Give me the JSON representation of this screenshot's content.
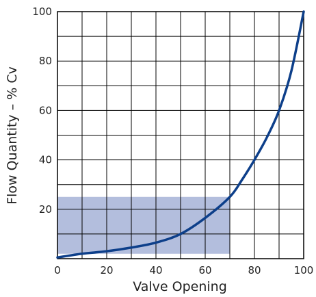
{
  "chart_data": {
    "type": "line",
    "title": "",
    "xlabel": "Valve Opening",
    "ylabel": "Flow Quantity – % Cv",
    "xlim": [
      0,
      100
    ],
    "ylim": [
      0,
      100
    ],
    "x_ticks": [
      {
        "value": 0,
        "label": "0"
      },
      {
        "value": 20,
        "label": "20"
      },
      {
        "value": 40,
        "label": "40"
      },
      {
        "value": 60,
        "label": "60"
      },
      {
        "value": 80,
        "label": "80"
      },
      {
        "value": 100,
        "label": "100"
      }
    ],
    "y_ticks": [
      {
        "value": 20,
        "label": "20"
      },
      {
        "value": 40,
        "label": "40"
      },
      {
        "value": 60,
        "label": "60"
      },
      {
        "value": 80,
        "label": "80"
      },
      {
        "value": 100,
        "label": "100"
      }
    ],
    "grid": true,
    "grid_step": {
      "x": 10,
      "y": 10
    },
    "highlight_region": {
      "x": [
        0,
        70
      ],
      "y": [
        2,
        25
      ],
      "color": "#b3bedd"
    },
    "series": [
      {
        "color": "#0d3f8a",
        "x": [
          0,
          10,
          20,
          30,
          40,
          50,
          60,
          70,
          75,
          80,
          85,
          90,
          95,
          100
        ],
        "y": [
          0.5,
          2,
          3,
          4.5,
          6.5,
          10,
          16.5,
          25,
          32,
          40,
          49,
          60,
          76,
          100
        ]
      }
    ]
  }
}
